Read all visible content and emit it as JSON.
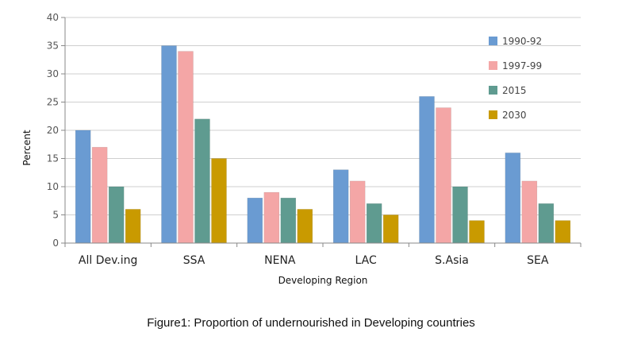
{
  "caption": "Figure1:  Proportion of undernourished in Developing countries",
  "colors": {
    "1990-92": "#6a9bd2",
    "1997-99": "#f4a6a6",
    "2015": "#5f9b90",
    "2030": "#c99a00",
    "grid": "#cfcfcf"
  },
  "chart_data": {
    "type": "bar",
    "title": "",
    "xlabel": "Developing Region",
    "ylabel": "Percent",
    "ylim": [
      0,
      40
    ],
    "yticks": [
      0,
      5,
      10,
      15,
      20,
      25,
      30,
      35,
      40
    ],
    "grid": true,
    "legend_position": "top-right",
    "categories": [
      "All Dev.ing",
      "SSA",
      "NENA",
      "LAC",
      "S.Asia",
      "SEA"
    ],
    "series": [
      {
        "name": "1990-92",
        "values": [
          20,
          35,
          8,
          13,
          26,
          16
        ]
      },
      {
        "name": "1997-99",
        "values": [
          17,
          34,
          9,
          11,
          24,
          11
        ]
      },
      {
        "name": "2015",
        "values": [
          10,
          22,
          8,
          7,
          10,
          7
        ]
      },
      {
        "name": "2030",
        "values": [
          6,
          15,
          6,
          5,
          4,
          4
        ]
      }
    ]
  }
}
